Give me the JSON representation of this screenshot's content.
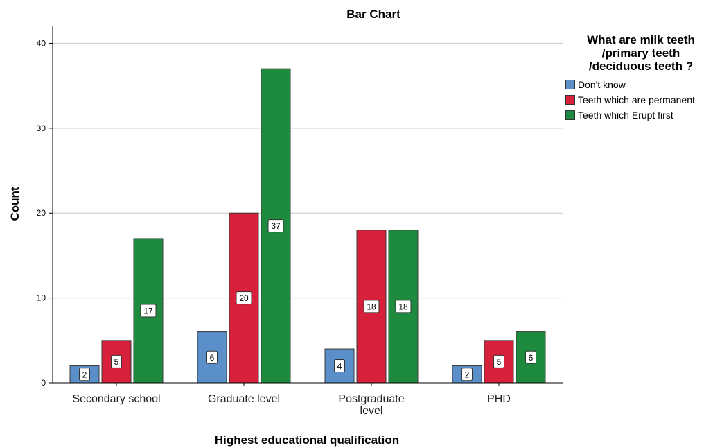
{
  "chart_data": {
    "type": "bar",
    "title": "Bar Chart",
    "xlabel": "Highest educational qualification",
    "ylabel": "Count",
    "ylim": [
      0,
      42
    ],
    "yticks": [
      0,
      10,
      20,
      30,
      40
    ],
    "categories": [
      "Secondary school",
      "Graduate level",
      "Postgraduate level",
      "PHD"
    ],
    "series": [
      {
        "name": "Don't know",
        "color": "#5b8fc9",
        "values": [
          2,
          6,
          4,
          2
        ]
      },
      {
        "name": "Teeth which are permanent",
        "color": "#d7213a",
        "values": [
          5,
          20,
          18,
          5
        ]
      },
      {
        "name": "Teeth which Erupt first",
        "color": "#1e8a3e",
        "values": [
          17,
          37,
          18,
          6
        ]
      }
    ],
    "data_labels": true,
    "grid": true,
    "legend": {
      "title": "What are milk teeth\n/primary teeth\n/deciduous  teeth ?",
      "position": "top-right"
    }
  }
}
